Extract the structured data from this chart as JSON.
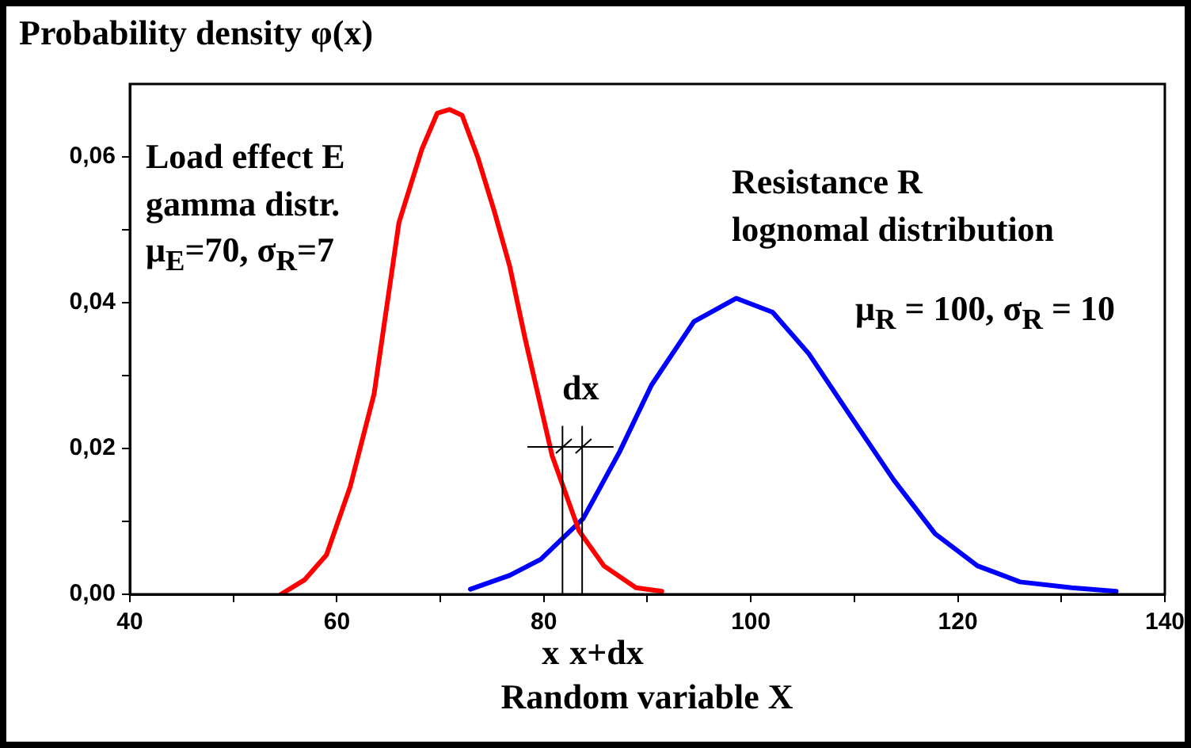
{
  "chart_data": {
    "type": "line",
    "ylabel": "Probability density φ(x)",
    "xlabel": "Random variable X",
    "xlim": [
      40,
      140
    ],
    "ylim": [
      0,
      0.07
    ],
    "xticks": [
      40,
      {
        "value": 50,
        "label": null
      },
      60,
      {
        "value": 70,
        "label": null
      },
      80,
      {
        "value": 90,
        "label": null
      },
      100,
      {
        "value": 110,
        "label": null
      },
      120,
      {
        "value": 130,
        "label": null
      },
      140
    ],
    "yticks": [
      {
        "value": 0,
        "label": "0,00"
      },
      {
        "value": 0.01,
        "label": null
      },
      {
        "value": 0.02,
        "label": "0,02"
      },
      {
        "value": 0.03,
        "label": null
      },
      {
        "value": 0.04,
        "label": "0,04"
      },
      {
        "value": 0.05,
        "label": null
      },
      {
        "value": 0.06,
        "label": "0,06"
      }
    ],
    "grid": false,
    "legend": false,
    "marker": "none",
    "line_style": "solid",
    "series": [
      {
        "color": "#ff0000",
        "x": [
          54.6,
          56.9,
          59.0,
          61.3,
          63.6,
          66.0,
          68.2,
          69.7,
          70.9,
          72.1,
          73.6,
          75.2,
          76.7,
          78.2,
          80.8,
          83.4,
          85.8,
          88.9,
          91.4
        ],
        "values": [
          0,
          0.002,
          0.0054,
          0.0148,
          0.0275,
          0.051,
          0.061,
          0.066,
          0.0665,
          0.0657,
          0.06,
          0.0526,
          0.045,
          0.035,
          0.019,
          0.0087,
          0.0039,
          0.0009,
          0.0004
        ]
      },
      {
        "color": "#0000ff",
        "x": [
          72.9,
          76.7,
          79.7,
          83.8,
          87.3,
          90.4,
          94.5,
          98.6,
          102.1,
          105.6,
          109.7,
          113.8,
          117.8,
          121.9,
          126.0,
          131.0,
          135.3
        ],
        "values": [
          0.0007,
          0.0026,
          0.0048,
          0.0104,
          0.0195,
          0.0287,
          0.0374,
          0.0406,
          0.0387,
          0.033,
          0.0243,
          0.0157,
          0.0083,
          0.0039,
          0.0017,
          0.0009,
          0.0004
        ]
      }
    ],
    "ref_lines": [
      {
        "axis": "x",
        "value": 81.8,
        "label": "x"
      },
      {
        "axis": "x",
        "value": 83.7,
        "label": "x+dx"
      }
    ],
    "annotations": [
      "Load effect E\ngamma distr.\nμ$_{E}$=70, σ$_{R}$=7",
      "Resistance R\nlognomal distribution",
      "μ$_{R}$ = 100, σ$_{R}$ = 10",
      "dx"
    ]
  }
}
